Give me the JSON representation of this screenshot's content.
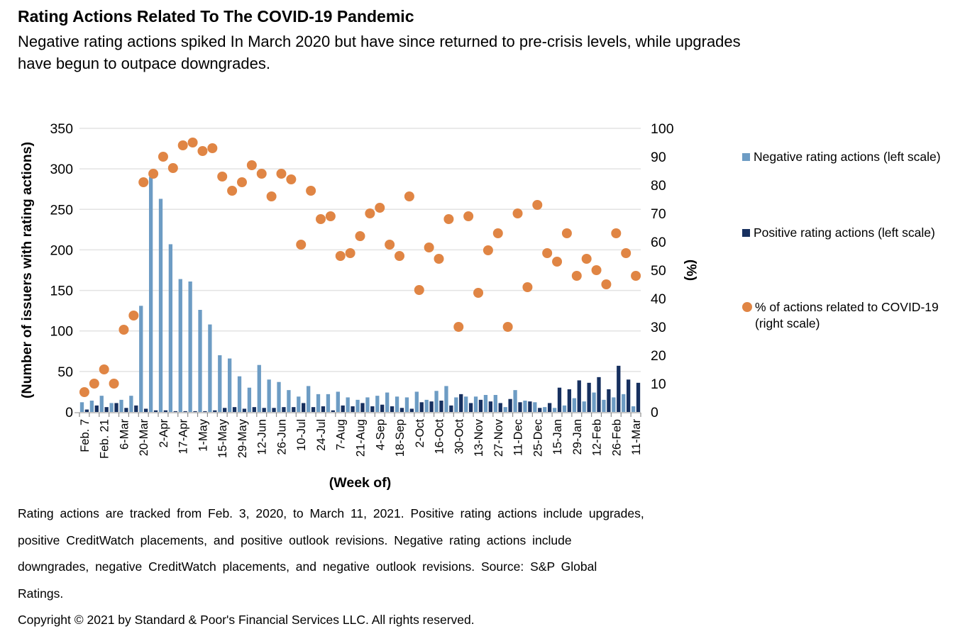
{
  "header": {
    "title": "Rating Actions Related To The COVID-19 Pandemic",
    "subtitle": "Negative rating actions spiked In March 2020 but have since returned to pre-crisis levels, while upgrades have begun to outpace downgrades."
  },
  "legend": {
    "items": [
      {
        "label": "Negative rating actions (left scale)",
        "color": "#6D9CC4",
        "shape": "square"
      },
      {
        "label": "Positive rating actions (left scale)",
        "color": "#17305F",
        "shape": "square"
      },
      {
        "label": "% of actions related to COVID-19 (right scale)",
        "color": "#E08544",
        "shape": "circle"
      }
    ]
  },
  "chart_data": {
    "type": "combo-bar-scatter",
    "n_points": 57,
    "tick_every": 2,
    "x_tick_labels": [
      "Feb. 7",
      "Feb. 21",
      "6-Mar",
      "20-Mar",
      "2-Apr",
      "17-Apr",
      "1-May",
      "15-May",
      "29-May",
      "12-Jun",
      "26-Jun",
      "10-Jul",
      "24-Jul",
      "7-Aug",
      "21-Aug",
      "4-Sep",
      "18-Sep",
      "2-Oct",
      "16-Oct",
      "30-Oct",
      "13-Nov",
      "27-Nov",
      "11-Dec",
      "25-Dec",
      "15-Jan",
      "29-Jan",
      "12-Feb",
      "26-Feb",
      "11-Mar"
    ],
    "x_axis": {
      "label": "(Week of)"
    },
    "left_axis": {
      "label": "(Number of issuers with rating actions)",
      "min": 0,
      "max": 350,
      "step": 50
    },
    "right_axis": {
      "label": "(%)",
      "min": 0,
      "max": 100,
      "step": 10
    },
    "grid": "horizontal",
    "legend_position": "right",
    "series": [
      {
        "name": "Negative rating actions (left scale)",
        "type": "bar",
        "axis": "left",
        "color": "#6D9CC4",
        "values": [
          12,
          14,
          20,
          11,
          15,
          20,
          131,
          290,
          263,
          207,
          164,
          161,
          126,
          108,
          70,
          66,
          44,
          30,
          58,
          40,
          37,
          27,
          19,
          32,
          22,
          22,
          25,
          18,
          15,
          18,
          20,
          24,
          19,
          18,
          25,
          15,
          26,
          32,
          18,
          19,
          19,
          21,
          21,
          6,
          27,
          14,
          12,
          6,
          5,
          8,
          17,
          13,
          24,
          15,
          18,
          22,
          7
        ]
      },
      {
        "name": "Positive rating actions (left scale)",
        "type": "bar",
        "axis": "left",
        "color": "#17305F",
        "values": [
          3,
          8,
          6,
          11,
          5,
          8,
          4,
          2,
          2,
          1,
          1,
          1,
          1,
          2,
          5,
          6,
          4,
          6,
          5,
          5,
          6,
          6,
          11,
          6,
          7,
          2,
          8,
          7,
          11,
          7,
          9,
          7,
          5,
          4,
          12,
          13,
          14,
          8,
          22,
          11,
          15,
          13,
          11,
          16,
          12,
          13,
          5,
          11,
          30,
          28,
          39,
          36,
          43,
          28,
          57,
          40,
          36
        ]
      },
      {
        "name": "% of actions related to COVID-19 (right scale)",
        "type": "scatter",
        "axis": "right",
        "color": "#E08544",
        "values": [
          7,
          10,
          15,
          10,
          29,
          34,
          81,
          84,
          90,
          86,
          94,
          95,
          92,
          93,
          83,
          78,
          81,
          87,
          84,
          76,
          84,
          82,
          59,
          78,
          68,
          69,
          55,
          56,
          62,
          70,
          72,
          59,
          55,
          76,
          43,
          58,
          54,
          68,
          30,
          69,
          42,
          57,
          63,
          30,
          70,
          44,
          73,
          56,
          53,
          63,
          48,
          54,
          50,
          45,
          63,
          56,
          48
        ]
      }
    ],
    "colors": {
      "negative_bar": "#6D9CC4",
      "positive_bar": "#17305F",
      "pct_dot": "#E08544",
      "gridline": "#E3E3E3",
      "axis_line": "#C6C6C6",
      "tick": "#8C8C8C"
    }
  },
  "footnote": {
    "lines": [
      "Rating actions are tracked from Feb. 3, 2020, to March 11, 2021. Positive rating actions include upgrades,",
      "positive CreditWatch placements, and positive outlook revisions. Negative rating actions include",
      "downgrades, negative CreditWatch placements, and negative outlook revisions. Source: S&P Global",
      "Ratings."
    ],
    "copyright": "Copyright © 2021 by Standard & Poor's Financial Services LLC. All rights reserved."
  }
}
